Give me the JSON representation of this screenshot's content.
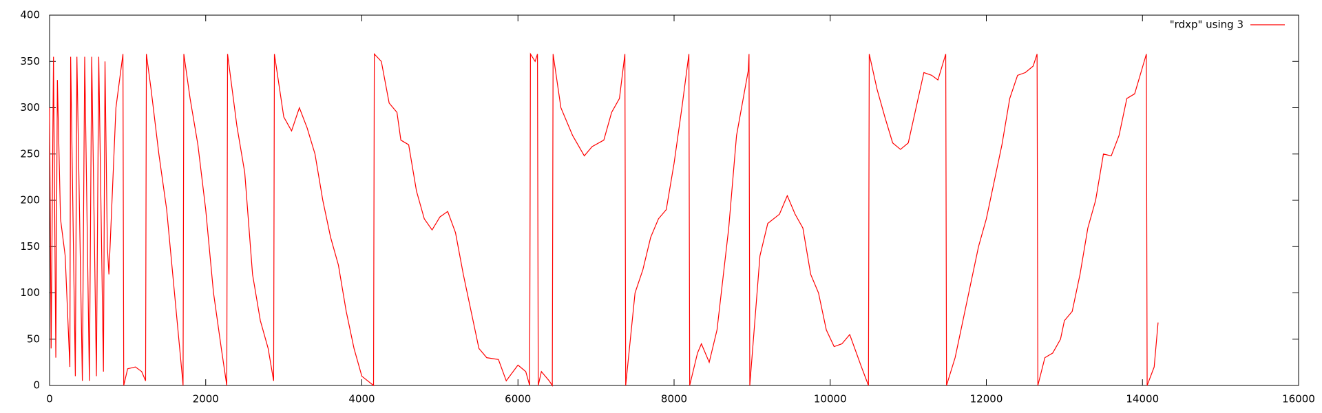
{
  "chart_data": {
    "type": "line",
    "x": [
      0,
      20,
      50,
      80,
      100,
      140,
      200,
      260,
      270,
      330,
      350,
      420,
      450,
      510,
      540,
      600,
      630,
      690,
      710,
      740,
      760,
      800,
      850,
      940,
      950,
      1000,
      1100,
      1180,
      1230,
      1240,
      1300,
      1400,
      1500,
      1600,
      1700,
      1710,
      1720,
      1800,
      1900,
      2000,
      2100,
      2200,
      2270,
      2280,
      2400,
      2500,
      2600,
      2700,
      2800,
      2870,
      2880,
      3000,
      3100,
      3200,
      3300,
      3400,
      3500,
      3600,
      3700,
      3800,
      3900,
      4000,
      4150,
      4160,
      4250,
      4350,
      4450,
      4500,
      4600,
      4700,
      4800,
      4900,
      5000,
      5100,
      5200,
      5300,
      5400,
      5500,
      5600,
      5750,
      5850,
      6000,
      6100,
      6150,
      6160,
      6220,
      6250,
      6260,
      6300,
      6400,
      6440,
      6450,
      6550,
      6700,
      6850,
      6950,
      7100,
      7200,
      7300,
      7370,
      7380,
      7500,
      7600,
      7700,
      7800,
      7900,
      8000,
      8100,
      8190,
      8200,
      8300,
      8350,
      8450,
      8550,
      8700,
      8800,
      8950,
      8960,
      8970,
      9100,
      9200,
      9350,
      9450,
      9550,
      9650,
      9750,
      9850,
      9950,
      10050,
      10150,
      10250,
      10400,
      10490,
      10500,
      10600,
      10700,
      10800,
      10900,
      11000,
      11100,
      11200,
      11300,
      11380,
      11480,
      11490,
      11600,
      11700,
      11800,
      11900,
      12000,
      12100,
      12200,
      12300,
      12400,
      12500,
      12600,
      12650,
      12660,
      12750,
      12850,
      12950,
      13000,
      13100,
      13200,
      13300,
      13400,
      13500,
      13600,
      13700,
      13800,
      13900,
      14050,
      14060,
      14150,
      14200
    ],
    "series": [
      {
        "name": "\"rdxp\" using 3",
        "color": "#ff0000",
        "values": [
          300,
          40,
          355,
          30,
          330,
          180,
          140,
          20,
          355,
          10,
          355,
          5,
          355,
          5,
          355,
          10,
          355,
          15,
          350,
          150,
          120,
          200,
          300,
          358,
          0,
          18,
          20,
          15,
          5,
          358,
          320,
          250,
          190,
          100,
          10,
          0,
          358,
          310,
          260,
          190,
          100,
          40,
          0,
          358,
          280,
          230,
          120,
          70,
          40,
          5,
          358,
          290,
          275,
          300,
          278,
          250,
          200,
          160,
          130,
          80,
          40,
          10,
          0,
          358,
          350,
          305,
          295,
          265,
          260,
          210,
          180,
          168,
          182,
          188,
          165,
          120,
          80,
          40,
          30,
          28,
          5,
          22,
          15,
          0,
          358,
          350,
          358,
          0,
          15,
          5,
          0,
          358,
          300,
          270,
          248,
          258,
          265,
          295,
          310,
          358,
          0,
          100,
          125,
          160,
          180,
          190,
          240,
          300,
          358,
          0,
          35,
          45,
          25,
          60,
          170,
          270,
          340,
          358,
          0,
          140,
          175,
          185,
          205,
          185,
          170,
          120,
          100,
          60,
          42,
          45,
          55,
          20,
          0,
          358,
          320,
          290,
          262,
          255,
          262,
          300,
          338,
          335,
          330,
          358,
          0,
          30,
          70,
          110,
          150,
          180,
          220,
          260,
          310,
          335,
          338,
          345,
          358,
          0,
          30,
          35,
          50,
          70,
          80,
          120,
          170,
          200,
          250,
          248,
          270,
          310,
          315,
          358,
          0,
          20,
          68
        ]
      }
    ],
    "xlim": [
      0,
      16000
    ],
    "xticks": [
      0,
      2000,
      4000,
      6000,
      8000,
      10000,
      12000,
      14000,
      16000
    ],
    "ylim": [
      0,
      400
    ],
    "yticks": [
      0,
      50,
      100,
      150,
      200,
      250,
      300,
      350,
      400
    ],
    "grid": false,
    "legend": "top-right"
  }
}
